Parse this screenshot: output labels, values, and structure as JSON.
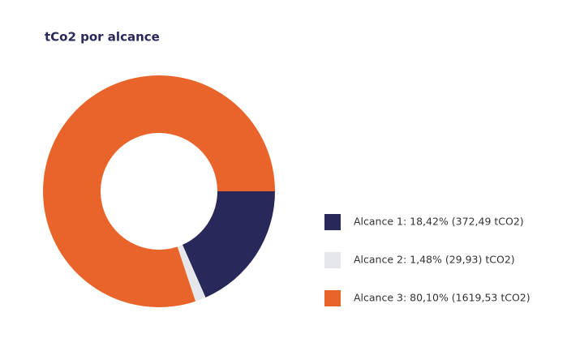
{
  "chart_data": {
    "type": "donut",
    "title": "tCo2 por alcance",
    "series": [
      {
        "name": "Alcance 1: 18,42% (372,49 tCO2)",
        "color": "#29285a",
        "values": [
          18.42
        ]
      },
      {
        "name": "Alcance 2: 1,48% (29,93) tCO2)",
        "color": "#e6e7ea",
        "values": [
          1.48
        ]
      },
      {
        "name": "Alcance 3: 80,10% (1619,53 tCO2)",
        "color": "#e8642a",
        "values": [
          80.1
        ]
      }
    ]
  }
}
